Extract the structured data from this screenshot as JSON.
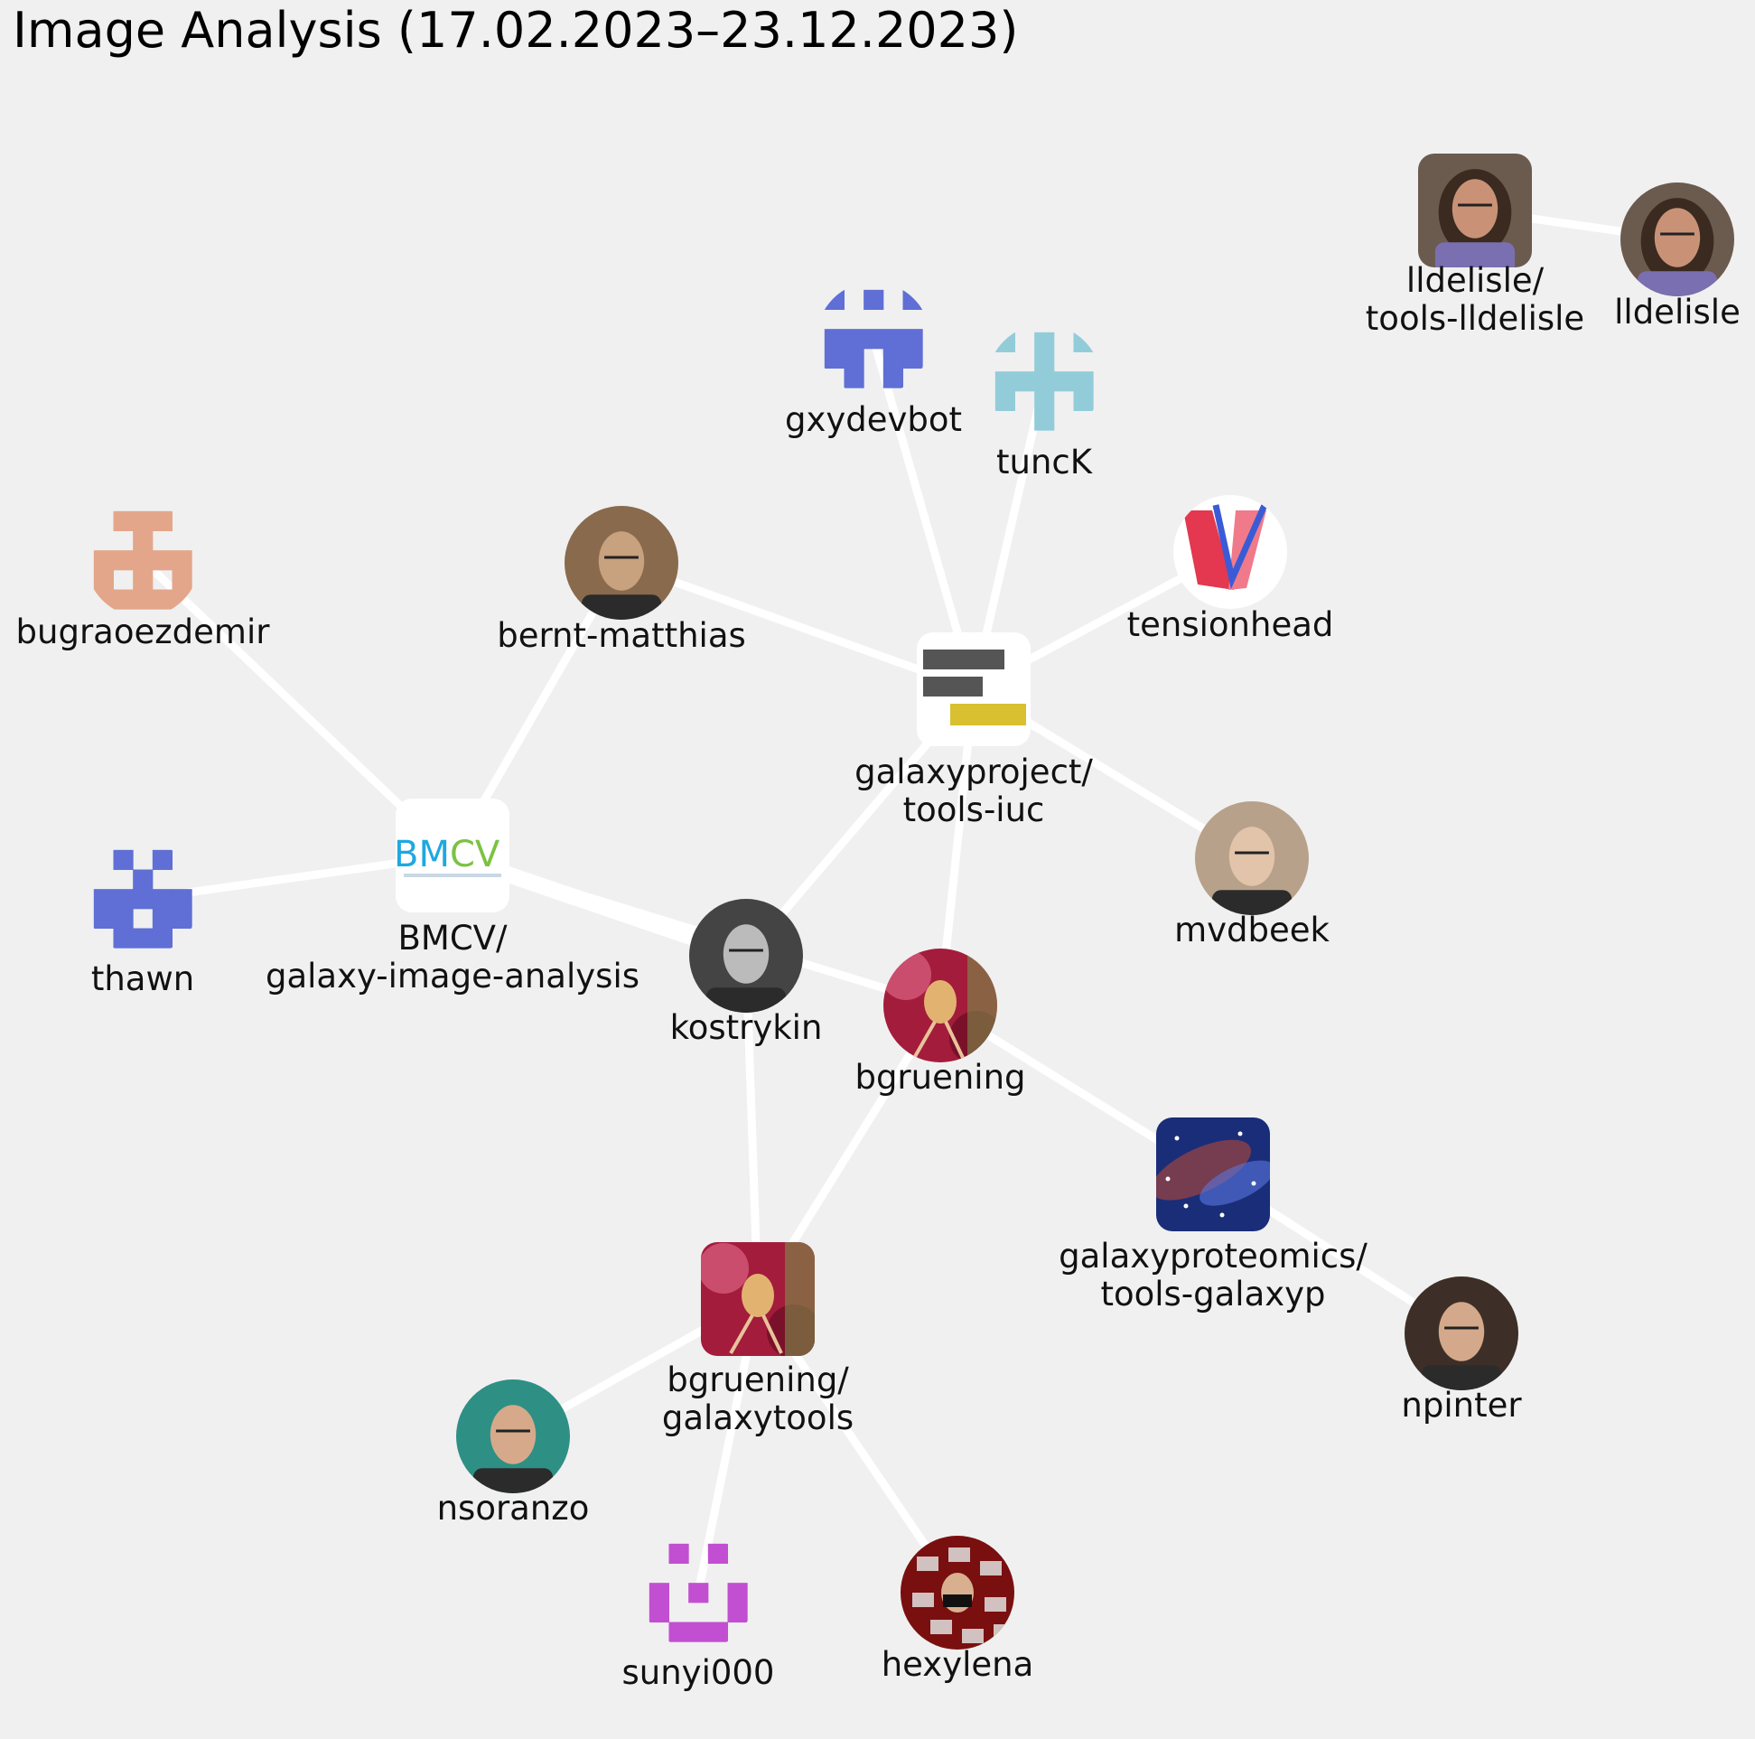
{
  "title": "Image Analysis (17.02.2023–23.12.2023)",
  "nodes": [
    {
      "id": "lldelisle-repo",
      "label": [
        "lldelisle/",
        "tools-lldelisle"
      ],
      "kind": "repo",
      "avatar": "photo-woman-icon",
      "avatar_colors": [
        "#6b5a4e",
        "#c99277"
      ]
    },
    {
      "id": "lldelisle",
      "label": [
        "lldelisle"
      ],
      "kind": "user",
      "avatar": "photo-woman-icon",
      "avatar_colors": [
        "#6b5a4e",
        "#c99277"
      ]
    },
    {
      "id": "gxydevbot",
      "label": [
        "gxydevbot"
      ],
      "kind": "user",
      "avatar": "identicon-icon",
      "avatar_colors": [
        "#5f6fd6"
      ]
    },
    {
      "id": "tuncK",
      "label": [
        "tuncK"
      ],
      "kind": "user",
      "avatar": "identicon-icon",
      "avatar_colors": [
        "#93ccd9"
      ]
    },
    {
      "id": "tensionhead",
      "label": [
        "tensionhead"
      ],
      "kind": "user",
      "avatar": "logo-icon",
      "avatar_colors": [
        "#e3384f",
        "#3b5bd6"
      ]
    },
    {
      "id": "bugraoezdemir",
      "label": [
        "bugraoezdemir"
      ],
      "kind": "user",
      "avatar": "identicon-icon",
      "avatar_colors": [
        "#e3a68a"
      ]
    },
    {
      "id": "bernt-matthias",
      "label": [
        "bernt-matthias"
      ],
      "kind": "user",
      "avatar": "photo-man-icon",
      "avatar_colors": [
        "#8a6a4d",
        "#c8a17e"
      ]
    },
    {
      "id": "tools-iuc",
      "label": [
        "galaxyproject/",
        "tools-iuc"
      ],
      "kind": "repo",
      "avatar": "galaxy-logo-icon",
      "avatar_colors": [
        "#555555",
        "#d8c030"
      ]
    },
    {
      "id": "mvdbeek",
      "label": [
        "mvdbeek"
      ],
      "kind": "user",
      "avatar": "photo-man-icon",
      "avatar_colors": [
        "#b8a18a",
        "#e2c4aa"
      ]
    },
    {
      "id": "bmcv-repo",
      "label": [
        "BMCV/",
        "galaxy-image-analysis"
      ],
      "kind": "repo",
      "avatar": "bmcv-logo-icon",
      "avatar_colors": [
        "#1fa8e0",
        "#7cc242"
      ]
    },
    {
      "id": "thawn",
      "label": [
        "thawn"
      ],
      "kind": "user",
      "avatar": "identicon-icon",
      "avatar_colors": [
        "#5f6fd6"
      ]
    },
    {
      "id": "kostrykin",
      "label": [
        "kostrykin"
      ],
      "kind": "user",
      "avatar": "photo-man-icon",
      "avatar_colors": [
        "#444444",
        "#bbbbbb"
      ]
    },
    {
      "id": "bgruening",
      "label": [
        "bgruening"
      ],
      "kind": "user",
      "avatar": "orchid-photo-icon",
      "avatar_colors": [
        "#a31c3c",
        "#e2b370"
      ]
    },
    {
      "id": "tools-galaxyp",
      "label": [
        "galaxyproteomics/",
        "tools-galaxyp"
      ],
      "kind": "repo",
      "avatar": "galaxy-nebula-icon",
      "avatar_colors": [
        "#1a2d78",
        "#c2482e"
      ]
    },
    {
      "id": "npinter",
      "label": [
        "npinter"
      ],
      "kind": "user",
      "avatar": "photo-man-icon",
      "avatar_colors": [
        "#3d2f27",
        "#d4a88a"
      ]
    },
    {
      "id": "bgruening-repo",
      "label": [
        "bgruening/",
        "galaxytools"
      ],
      "kind": "repo",
      "avatar": "orchid-photo-icon",
      "avatar_colors": [
        "#a31c3c",
        "#e2b370"
      ]
    },
    {
      "id": "nsoranzo",
      "label": [
        "nsoranzo"
      ],
      "kind": "user",
      "avatar": "photo-man-icon",
      "avatar_colors": [
        "#2e8f85",
        "#d6a98a"
      ]
    },
    {
      "id": "sunyi000",
      "label": [
        "sunyi000"
      ],
      "kind": "user",
      "avatar": "identicon-icon",
      "avatar_colors": [
        "#c24fd1"
      ]
    },
    {
      "id": "hexylena",
      "label": [
        "hexylena"
      ],
      "kind": "user",
      "avatar": "collage-photo-icon",
      "avatar_colors": [
        "#7a0f0f",
        "#e0e0e0"
      ]
    }
  ],
  "edges": [
    {
      "source": "lldelisle-repo",
      "target": "lldelisle",
      "weight": 1
    },
    {
      "source": "gxydevbot",
      "target": "tools-iuc",
      "weight": 1
    },
    {
      "source": "tuncK",
      "target": "tools-iuc",
      "weight": 1
    },
    {
      "source": "tensionhead",
      "target": "tools-iuc",
      "weight": 1
    },
    {
      "source": "bernt-matthias",
      "target": "tools-iuc",
      "weight": 1
    },
    {
      "source": "mvdbeek",
      "target": "tools-iuc",
      "weight": 1
    },
    {
      "source": "kostrykin",
      "target": "tools-iuc",
      "weight": 1
    },
    {
      "source": "bgruening",
      "target": "tools-iuc",
      "weight": 1
    },
    {
      "source": "bugraoezdemir",
      "target": "bmcv-repo",
      "weight": 1
    },
    {
      "source": "bernt-matthias",
      "target": "bmcv-repo",
      "weight": 1
    },
    {
      "source": "thawn",
      "target": "bmcv-repo",
      "weight": 1
    },
    {
      "source": "kostrykin",
      "target": "bmcv-repo",
      "weight": 2
    },
    {
      "source": "bgruening",
      "target": "bmcv-repo",
      "weight": 1
    },
    {
      "source": "bgruening",
      "target": "tools-galaxyp",
      "weight": 1
    },
    {
      "source": "npinter",
      "target": "tools-galaxyp",
      "weight": 1
    },
    {
      "source": "kostrykin",
      "target": "bgruening-repo",
      "weight": 1
    },
    {
      "source": "bgruening",
      "target": "bgruening-repo",
      "weight": 1
    },
    {
      "source": "nsoranzo",
      "target": "bgruening-repo",
      "weight": 1
    },
    {
      "source": "sunyi000",
      "target": "bgruening-repo",
      "weight": 1
    },
    {
      "source": "hexylena",
      "target": "bgruening-repo",
      "weight": 1
    }
  ]
}
